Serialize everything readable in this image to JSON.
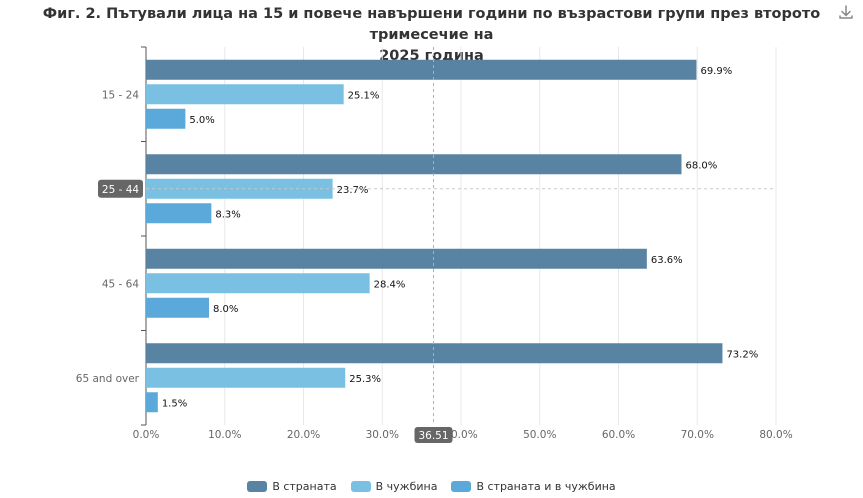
{
  "chart_data": {
    "type": "bar",
    "orientation": "horizontal",
    "title": "Фиг. 2. Пътували лица на 15 и повече навършени години по възрастови групи през второто тримесечие на 2025 година",
    "title_lines": [
      "Фиг. 2. Пътували лица на 15 и повече навършени години по възрастови групи през второто тримесечие на",
      "2025 година"
    ],
    "categories": [
      "15 - 24",
      "25 - 44",
      "45 - 64",
      "65 and over"
    ],
    "series": [
      {
        "name": "В страната",
        "values": [
          69.9,
          68.0,
          63.6,
          73.2
        ],
        "color": "#5883a3",
        "labels": [
          "69.9%",
          "68.0%",
          "63.6%",
          "73.2%"
        ]
      },
      {
        "name": "В чужбина",
        "values": [
          25.1,
          23.7,
          28.4,
          25.3
        ],
        "color": "#79c0e3",
        "labels": [
          "25.1%",
          "23.7%",
          "28.4%",
          "25.3%"
        ]
      },
      {
        "name": "В страната и в чужбина",
        "values": [
          5.0,
          8.3,
          8.0,
          1.5
        ],
        "color": "#5ba9da",
        "labels": [
          "5.0%",
          "8.3%",
          "8.0%",
          "1.5%"
        ]
      }
    ],
    "xlim": [
      0,
      80
    ],
    "x_ticks": [
      0,
      10,
      20,
      30,
      40,
      50,
      60,
      70,
      80
    ],
    "x_tick_labels": [
      "0.0%",
      "10.0%",
      "20.0%",
      "30.0%",
      "40.0%",
      "50.0%",
      "60.0%",
      "70.0%",
      "80.0%"
    ],
    "xlabel": "",
    "ylabel": "",
    "grid": true,
    "legend_position": "bottom-center",
    "crosshair": {
      "x_value": 36.51,
      "x_label": "36.51",
      "category": "25 - 44",
      "series_index": 1
    }
  },
  "toolbar": {
    "download_icon": "download-icon"
  },
  "colors": {
    "axis": "#444444",
    "grid": "#e8e8e8",
    "tooltip_bg": "#666666"
  }
}
